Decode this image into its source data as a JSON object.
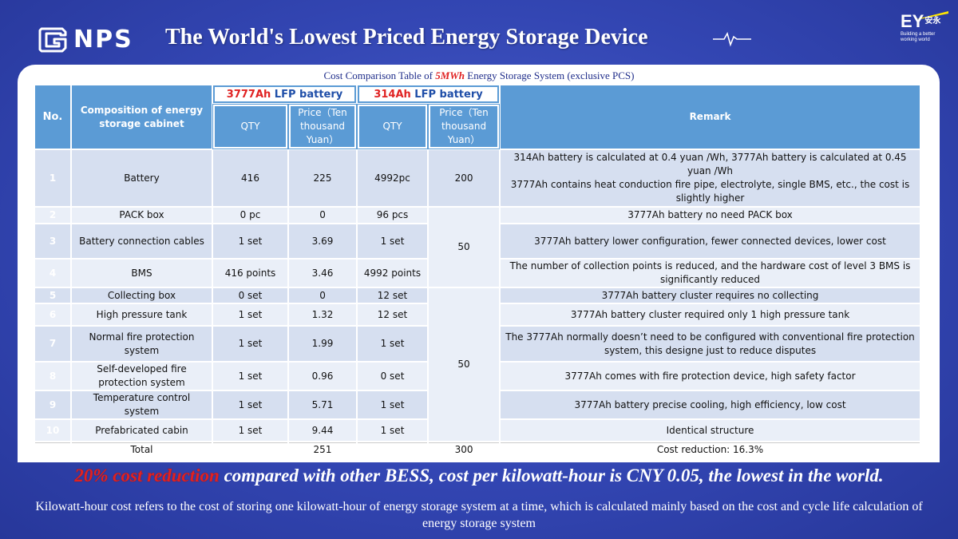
{
  "brand": {
    "logo_text": "NPS",
    "partner_mark": "EY",
    "partner_cn": "安永",
    "partner_tagline": "Building a better working world"
  },
  "title": "The World's Lowest Priced Energy Storage Device",
  "table_caption": {
    "prefix": "Cost Comparison Table of ",
    "highlight": "5MWh",
    "suffix": " Energy Storage System (exclusive PCS)"
  },
  "table": {
    "headers": {
      "no": "No.",
      "composition": "Composition of energy storage cabinet",
      "group_a_highlight": "3777Ah",
      "group_a_rest": " LFP battery",
      "group_b_highlight": "314Ah",
      "group_b_rest": " LFP battery",
      "qty": "QTY",
      "price": "Price（Ten thousand Yuan）",
      "remark": "Remark"
    },
    "rows": [
      {
        "no": "1",
        "item": "Battery",
        "qty_a": "416",
        "price_a": "225",
        "qty_b": "4992pc",
        "price_b": "200",
        "remark": "314Ah battery is calculated at 0.4 yuan /Wh, 3777Ah battery is calculated at 0.45 yuan /Wh\n3777Ah contains heat conduction fire pipe, electrolyte, single BMS, etc., the cost is slightly higher"
      },
      {
        "no": "2",
        "item": "PACK box",
        "qty_a": "0 pc",
        "price_a": "0",
        "qty_b": "96 pcs",
        "remark": "3777Ah battery no need PACK box"
      },
      {
        "no": "3",
        "item": "Battery connection cables",
        "qty_a": "1 set",
        "price_a": "3.69",
        "qty_b": "1 set",
        "remark": "3777Ah battery lower configuration, fewer connected devices, lower cost"
      },
      {
        "no": "4",
        "item": "BMS",
        "qty_a": "416 points",
        "price_a": "3.46",
        "qty_b": "4992 points",
        "remark": "The number of collection points is reduced, and the hardware cost of level 3 BMS is significantly reduced"
      },
      {
        "no": "5",
        "item": "Collecting box",
        "qty_a": "0 set",
        "price_a": "0",
        "qty_b": "12 set",
        "remark": "3777Ah battery cluster requires no collecting"
      },
      {
        "no": "6",
        "item": "High pressure tank",
        "qty_a": "1 set",
        "price_a": "1.32",
        "qty_b": "12 set",
        "remark": "3777Ah battery cluster required only 1 high pressure tank"
      },
      {
        "no": "7",
        "item": "Normal fire protection system",
        "qty_a": "1 set",
        "price_a": "1.99",
        "qty_b": "1 set",
        "remark": "The 3777Ah normally doesn’t need to be configured with conventional fire protection system, this designe just to reduce disputes"
      },
      {
        "no": "8",
        "item": "Self-developed fire protection system",
        "qty_a": "1 set",
        "price_a": "0.96",
        "qty_b": "0 set",
        "remark": "3777Ah comes with fire protection device, high safety factor"
      },
      {
        "no": "9",
        "item": "Temperature control system",
        "qty_a": "1 set",
        "price_a": "5.71",
        "qty_b": "1 set",
        "remark": "3777Ah battery precise cooling, high efficiency, low cost"
      },
      {
        "no": "10",
        "item": "Prefabricated cabin",
        "qty_a": "1 set",
        "price_a": "9.44",
        "qty_b": "1 set",
        "remark": "Identical structure"
      }
    ],
    "merged_price_b_2_4": "50",
    "merged_price_b_5_10": "50",
    "total": {
      "label": "Total",
      "price_a": "251",
      "price_b": "300",
      "remark": "Cost reduction: 16.3%"
    }
  },
  "slogan": {
    "highlight": "20% cost reduction",
    "rest": " compared with other BESS, cost per kilowatt-hour is CNY 0.05, the lowest in the world."
  },
  "footnote": "Kilowatt-hour cost refers to the cost of storing one kilowatt-hour of energy storage system at a time, which is calculated mainly based on the cost and cycle life calculation of energy storage system",
  "colors": {
    "background": "#3346b3",
    "header_blue": "#5b9bd5",
    "row_dark": "#d6dff0",
    "row_light": "#eaeff8",
    "highlight_red": "#e02222"
  }
}
